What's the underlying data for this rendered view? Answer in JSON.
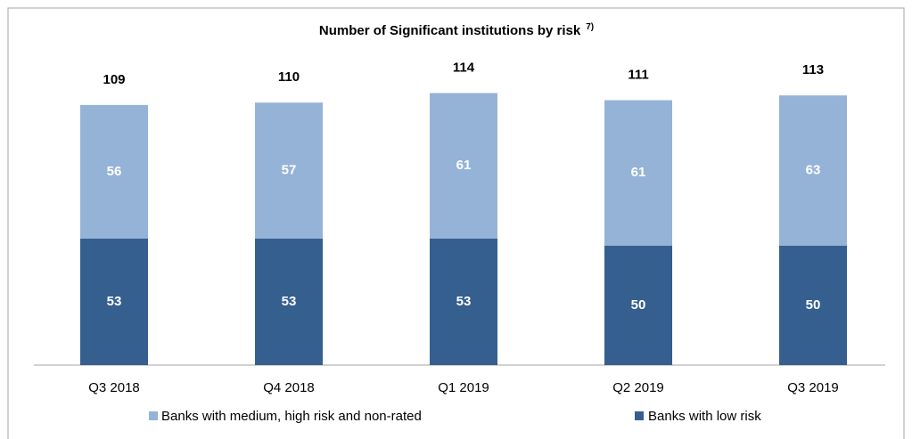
{
  "chart_data": {
    "type": "stacked-bar",
    "title": "Number of Significant institutions by risk",
    "title_note": "7)",
    "categories": [
      "Q3 2018",
      "Q4 2018",
      "Q1 2019",
      "Q2 2019",
      "Q3 2019"
    ],
    "series": [
      {
        "name": "Banks with low risk",
        "color": "#355f8f",
        "values": [
          53,
          53,
          53,
          50,
          50
        ]
      },
      {
        "name": "Banks with medium, high risk and non-rated",
        "color": "#95b3d7",
        "values": [
          56,
          57,
          61,
          61,
          63
        ]
      }
    ],
    "totals": [
      109,
      110,
      114,
      111,
      113
    ]
  }
}
